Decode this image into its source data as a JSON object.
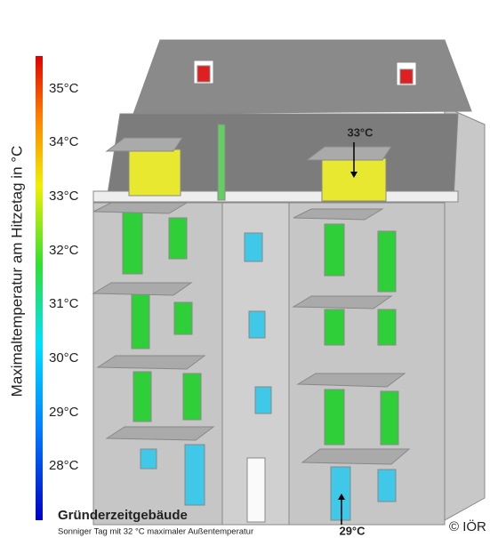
{
  "scale": {
    "title": "Maximaltemperatur am Hitzetag in °C",
    "ticks": [
      "35°C",
      "34°C",
      "33°C",
      "32°C",
      "31°C",
      "30°C",
      "29°C",
      "28°C"
    ]
  },
  "annotations": [
    "33°C",
    "29°C"
  ],
  "caption": {
    "title": "Gründerzeitgebäude",
    "subtitle": "Sonniger Tag mit 32 °C maximaler Außentemperatur"
  },
  "copyright": "© IÖR"
}
